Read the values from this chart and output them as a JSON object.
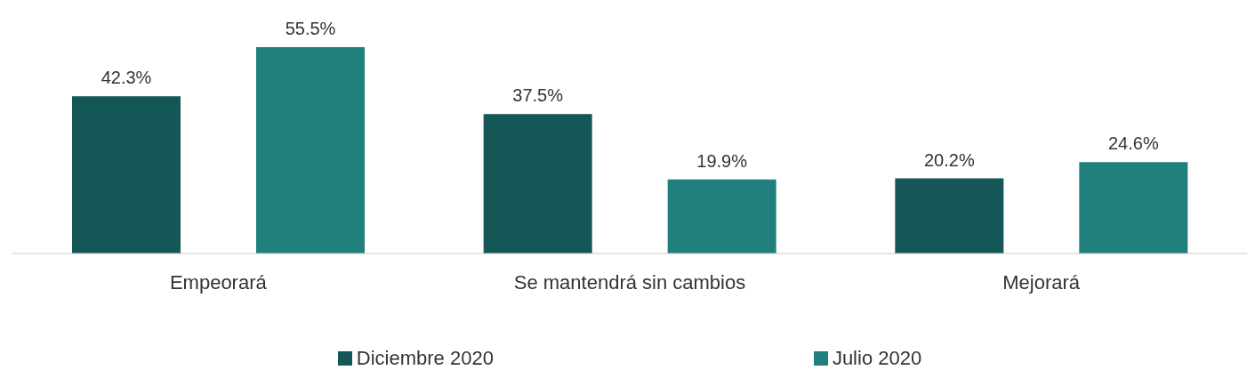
{
  "chart_data": {
    "type": "bar",
    "categories": [
      "Empeorará",
      "Se mantendrá sin cambios",
      "Mejorará"
    ],
    "series": [
      {
        "name": "Diciembre 2020",
        "color": "#155757",
        "values": [
          42.3,
          37.5,
          20.2
        ],
        "value_labels": [
          "42.3%",
          "37.5%",
          "20.2%"
        ]
      },
      {
        "name": "Julio 2020",
        "color": "#1f807d",
        "values": [
          55.5,
          19.9,
          24.6
        ],
        "value_labels": [
          "55.5%",
          "19.9%",
          "24.6%"
        ]
      }
    ],
    "grid": false,
    "legend": "bottom"
  }
}
